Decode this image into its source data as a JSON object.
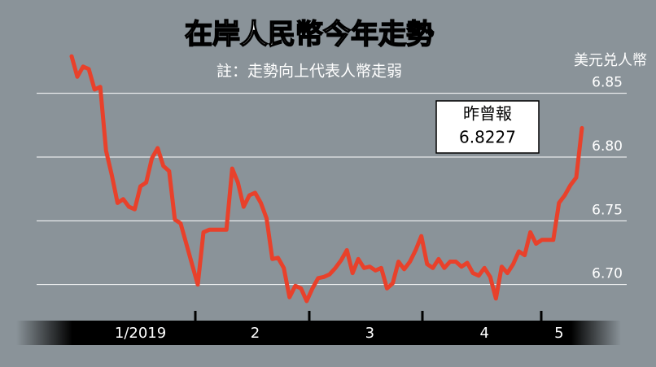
{
  "chart_data": {
    "type": "line",
    "title": "在岸人民幣今年走勢",
    "subtitle": "註：走勢向上代表人幣走弱",
    "y_label": "美元兑人幣",
    "annotation": {
      "label": "昨曾報",
      "value_text": "6.8227"
    },
    "categories": [
      null,
      null,
      null,
      null,
      null,
      null,
      null,
      null,
      null,
      null,
      null,
      null,
      "1/2019",
      null,
      null,
      null,
      null,
      null,
      null,
      null,
      null,
      null,
      null,
      null,
      null,
      null,
      null,
      null,
      null,
      null,
      null,
      null,
      "2",
      null,
      null,
      null,
      null,
      null,
      null,
      null,
      null,
      null,
      null,
      null,
      null,
      null,
      null,
      null,
      null,
      null,
      null,
      null,
      "3",
      null,
      null,
      null,
      null,
      null,
      null,
      null,
      null,
      null,
      null,
      null,
      null,
      null,
      null,
      null,
      null,
      null,
      null,
      null,
      "4",
      null,
      null,
      null,
      null,
      null,
      null,
      null,
      null,
      null,
      null,
      null,
      null,
      "5",
      null,
      null,
      null,
      null
    ],
    "series": [
      {
        "name": "美元兑人幣",
        "color": "#e8412b",
        "values": [
          6.879,
          6.863,
          6.871,
          6.869,
          6.853,
          6.855,
          6.805,
          6.786,
          6.764,
          6.767,
          6.761,
          6.759,
          6.777,
          6.78,
          6.799,
          6.807,
          6.793,
          6.789,
          6.751,
          6.748,
          6.732,
          6.716,
          6.7,
          6.741,
          6.743,
          6.743,
          6.743,
          6.743,
          6.791,
          6.78,
          6.761,
          6.77,
          6.772,
          6.764,
          6.752,
          6.72,
          6.721,
          6.713,
          6.69,
          6.699,
          6.697,
          6.687,
          6.697,
          6.705,
          6.706,
          6.708,
          6.713,
          6.719,
          6.727,
          6.709,
          6.72,
          6.713,
          6.714,
          6.711,
          6.713,
          6.697,
          6.701,
          6.718,
          6.712,
          6.718,
          6.727,
          6.738,
          6.716,
          6.713,
          6.72,
          6.713,
          6.718,
          6.718,
          6.714,
          6.717,
          6.709,
          6.707,
          6.713,
          6.706,
          6.689,
          6.714,
          6.709,
          6.716,
          6.726,
          6.723,
          6.741,
          6.732,
          6.735,
          6.735,
          6.735,
          6.764,
          6.77,
          6.778,
          6.784,
          6.8227
        ]
      }
    ],
    "ylim": [
      6.68,
      6.89
    ],
    "yticks": [
      {
        "value": 6.7,
        "label": "6.70"
      },
      {
        "value": 6.75,
        "label": "6.75"
      },
      {
        "value": 6.8,
        "label": "6.80"
      },
      {
        "value": 6.85,
        "label": "6.85"
      }
    ],
    "grid": true
  }
}
